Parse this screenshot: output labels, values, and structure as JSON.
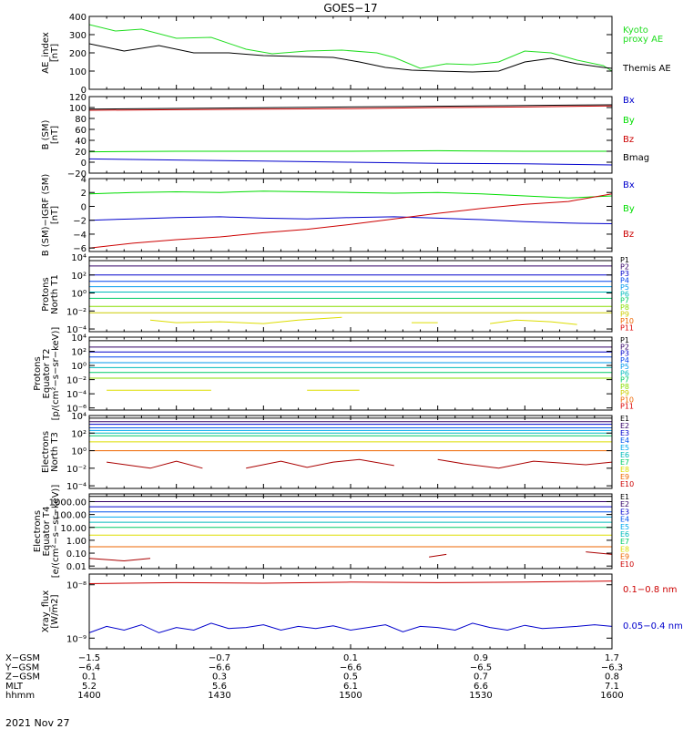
{
  "title": "GOES−17",
  "date_label": "2021 Nov 27",
  "colors": {
    "black": "#000000",
    "green": "#00dd00",
    "blue": "#0000cc",
    "red": "#cc0000",
    "ae_green": "#22dd22"
  },
  "footer": {
    "rows": [
      {
        "label": "X−GSM",
        "values": [
          "−1.5",
          "−0.7",
          "0.1",
          "0.9",
          "1.7"
        ]
      },
      {
        "label": "Y−GSM",
        "values": [
          "−6.4",
          "−6.6",
          "−6.6",
          "−6.5",
          "−6.3"
        ]
      },
      {
        "label": "Z−GSM",
        "values": [
          "0.1",
          "0.3",
          "0.5",
          "0.7",
          "0.8"
        ]
      },
      {
        "label": "MLT",
        "values": [
          "5.2",
          "5.6",
          "6.1",
          "6.6",
          "7.1"
        ]
      },
      {
        "label": "hhmm",
        "values": [
          "1400",
          "1430",
          "1500",
          "1530",
          "1600"
        ]
      }
    ]
  },
  "chart_data": [
    {
      "type": "line",
      "ylabel": [
        "AE_index",
        "[nT]"
      ],
      "ylim": [
        0,
        400
      ],
      "yticks": [
        "0",
        "100",
        "200",
        "300",
        "400"
      ],
      "x_minutes": [
        0,
        60
      ],
      "series": [
        {
          "name": "Kyoto proxy AE",
          "color": "#22dd22",
          "labels": [
            "Kyoto",
            "proxy AE"
          ],
          "x": [
            0,
            3,
            6,
            10,
            14,
            18,
            21,
            25,
            29,
            33,
            35,
            38,
            41,
            44,
            47,
            50,
            53,
            56,
            59,
            60
          ],
          "y": [
            355,
            320,
            330,
            280,
            285,
            220,
            195,
            210,
            215,
            200,
            175,
            115,
            140,
            135,
            150,
            210,
            200,
            160,
            130,
            100
          ]
        },
        {
          "name": "Themis AE",
          "color": "#000000",
          "labels": [
            "Themis AE"
          ],
          "x": [
            0,
            4,
            8,
            12,
            16,
            20,
            24,
            28,
            31,
            34,
            37,
            40,
            44,
            47,
            50,
            53,
            56,
            59,
            60
          ],
          "y": [
            250,
            210,
            240,
            200,
            200,
            185,
            180,
            175,
            150,
            120,
            105,
            100,
            95,
            100,
            150,
            170,
            140,
            120,
            115
          ]
        }
      ]
    },
    {
      "type": "line",
      "ylabel": [
        "B (SM)",
        "[nT]"
      ],
      "ylim": [
        -20,
        120
      ],
      "yticks": [
        "−20",
        "0",
        "20",
        "40",
        "60",
        "80",
        "100",
        "120"
      ],
      "x_minutes": [
        0,
        60
      ],
      "series": [
        {
          "name": "Bx",
          "color": "#0000cc",
          "x": [
            0,
            10,
            20,
            30,
            40,
            50,
            60
          ],
          "y": [
            6,
            4,
            2,
            0,
            -2,
            -3,
            -5
          ]
        },
        {
          "name": "By",
          "color": "#00dd00",
          "x": [
            0,
            10,
            20,
            30,
            40,
            50,
            60
          ],
          "y": [
            19,
            20,
            20,
            20,
            21,
            20,
            20
          ]
        },
        {
          "name": "Bz",
          "color": "#cc0000",
          "x": [
            0,
            10,
            20,
            30,
            40,
            50,
            60
          ],
          "y": [
            95,
            96,
            97,
            98,
            100,
            101,
            103
          ]
        },
        {
          "name": "Bmag",
          "color": "#000000",
          "x": [
            0,
            60
          ],
          "y": [
            97,
            105
          ]
        }
      ]
    },
    {
      "type": "line",
      "ylabel": [
        "B (SM)−IGRF (SM)",
        "[nT]"
      ],
      "ylim": [
        -6.5,
        4
      ],
      "yticks": [
        "−6",
        "−4",
        "−2",
        "0",
        "2",
        "4"
      ],
      "x_minutes": [
        0,
        60
      ],
      "series": [
        {
          "name": "Bx",
          "color": "#0000cc",
          "x": [
            0,
            5,
            10,
            15,
            20,
            25,
            30,
            35,
            40,
            45,
            50,
            55,
            60
          ],
          "y": [
            -2,
            -1.8,
            -1.6,
            -1.5,
            -1.7,
            -1.8,
            -1.6,
            -1.5,
            -1.7,
            -1.9,
            -2.2,
            -2.4,
            -2.5
          ]
        },
        {
          "name": "By",
          "color": "#00dd00",
          "x": [
            0,
            5,
            10,
            15,
            20,
            25,
            30,
            35,
            40,
            45,
            50,
            55,
            60
          ],
          "y": [
            1.8,
            2.0,
            2.1,
            2.0,
            2.2,
            2.1,
            2.0,
            1.9,
            2.0,
            1.8,
            1.5,
            1.2,
            1.5
          ]
        },
        {
          "name": "Bz",
          "color": "#cc0000",
          "x": [
            0,
            5,
            10,
            15,
            20,
            25,
            30,
            35,
            40,
            45,
            50,
            55,
            60
          ],
          "y": [
            -6,
            -5.3,
            -4.8,
            -4.4,
            -3.8,
            -3.3,
            -2.6,
            -1.8,
            -1.0,
            -0.3,
            0.3,
            0.7,
            1.8
          ]
        }
      ]
    },
    {
      "type": "line",
      "ylabel": [
        "Protons",
        "North T1"
      ],
      "scale": "log",
      "ylim": [
        -4.3,
        4
      ],
      "yticks": [
        {
          "e": -4,
          "t": "10⁻⁴"
        },
        {
          "e": -2,
          "t": "10⁻²"
        },
        {
          "e": 0,
          "t": "10⁰"
        },
        {
          "e": 2,
          "t": "10²"
        },
        {
          "e": 4,
          "t": "10⁴"
        }
      ],
      "x_minutes": [
        0,
        60
      ],
      "channels": [
        {
          "name": "P1",
          "color": "#000000",
          "log": 3.6
        },
        {
          "name": "P2",
          "color": "#330066",
          "log": 3.0
        },
        {
          "name": "P3",
          "color": "#0000cc",
          "log": 2.0
        },
        {
          "name": "P4",
          "color": "#0044ee",
          "log": 1.3
        },
        {
          "name": "P5",
          "color": "#0099ee",
          "log": 0.7
        },
        {
          "name": "P6",
          "color": "#00bbbb",
          "log": 0.1
        },
        {
          "name": "P7",
          "color": "#00cc66",
          "log": -0.6
        },
        {
          "name": "P8",
          "color": "#88dd00",
          "log": -1.5
        },
        {
          "name": "P9",
          "color": "#cccc00",
          "log": -2.2
        },
        {
          "name": "P10",
          "color": "#ee6600",
          "log": null
        },
        {
          "name": "P11",
          "color": "#dd0000",
          "log": null
        }
      ],
      "fragments": [
        {
          "color": "#dddd00",
          "x": [
            7,
            10,
            15,
            20,
            24,
            29
          ],
          "y": [
            -3.0,
            -3.3,
            -3.2,
            -3.4,
            -3.0,
            -2.7
          ]
        },
        {
          "color": "#dddd00",
          "x": [
            37,
            40
          ],
          "y": [
            -3.3,
            -3.3
          ]
        },
        {
          "color": "#dddd00",
          "x": [
            46,
            49,
            53,
            56
          ],
          "y": [
            -3.4,
            -3.0,
            -3.2,
            -3.5
          ]
        }
      ]
    },
    {
      "type": "line",
      "ylabel": [
        "Protons",
        "Equator T2",
        "[p/(cm²−s−sr−keV)]"
      ],
      "scale": "log",
      "ylim": [
        -6.3,
        4
      ],
      "yticks": [
        {
          "e": -6,
          "t": "10⁻⁶"
        },
        {
          "e": -4,
          "t": "10⁻⁴"
        },
        {
          "e": -2,
          "t": "10⁻²"
        },
        {
          "e": 0,
          "t": "10⁰"
        },
        {
          "e": 2,
          "t": "10²"
        },
        {
          "e": 4,
          "t": "10⁴"
        }
      ],
      "x_minutes": [
        0,
        60
      ],
      "channels": [
        {
          "name": "P1",
          "color": "#000000",
          "log": 3.5
        },
        {
          "name": "P2",
          "color": "#330066",
          "log": 2.6
        },
        {
          "name": "P3",
          "color": "#0000cc",
          "log": 1.9
        },
        {
          "name": "P4",
          "color": "#0044ee",
          "log": 1.2
        },
        {
          "name": "P5",
          "color": "#0099ee",
          "log": 0.4
        },
        {
          "name": "P6",
          "color": "#00bbbb",
          "log": -0.3
        },
        {
          "name": "P7",
          "color": "#00cc66",
          "log": -1.0
        },
        {
          "name": "P8",
          "color": "#88dd00",
          "log": -1.8
        },
        {
          "name": "P9",
          "color": "#cccc00",
          "log": null
        },
        {
          "name": "P10",
          "color": "#ee6600",
          "log": null
        },
        {
          "name": "P11",
          "color": "#dd0000",
          "log": null
        }
      ],
      "fragments": [
        {
          "color": "#dddd00",
          "x": [
            2,
            14
          ],
          "y": [
            -3.5,
            -3.5
          ]
        },
        {
          "color": "#dddd00",
          "x": [
            25,
            31
          ],
          "y": [
            -3.5,
            -3.5
          ]
        }
      ]
    },
    {
      "type": "line",
      "ylabel": [
        "Electrons",
        "North T3"
      ],
      "scale": "log",
      "ylim": [
        -4.3,
        4
      ],
      "yticks": [
        {
          "e": -4,
          "t": "10⁻⁴"
        },
        {
          "e": -2,
          "t": "10⁻²"
        },
        {
          "e": 0,
          "t": "10⁰"
        },
        {
          "e": 2,
          "t": "10²"
        },
        {
          "e": 4,
          "t": "10⁴"
        }
      ],
      "x_minutes": [
        0,
        60
      ],
      "channels": [
        {
          "name": "E1",
          "color": "#000000",
          "log": 3.7
        },
        {
          "name": "E2",
          "color": "#330066",
          "log": 3.3
        },
        {
          "name": "E3",
          "color": "#0000cc",
          "log": 3.0
        },
        {
          "name": "E4",
          "color": "#0055ee",
          "log": 2.6
        },
        {
          "name": "E5",
          "color": "#00aaee",
          "log": 2.3
        },
        {
          "name": "E6",
          "color": "#00bbbb",
          "log": 2.0
        },
        {
          "name": "E7",
          "color": "#00cc66",
          "log": 1.7
        },
        {
          "name": "E8",
          "color": "#dddd00",
          "log": 1.0
        },
        {
          "name": "E9",
          "color": "#ee6600",
          "log": 0.0
        },
        {
          "name": "E10",
          "color": "#cc0000",
          "log": null
        }
      ],
      "fragments": [
        {
          "color": "#aa0000",
          "x": [
            2,
            7,
            10,
            13
          ],
          "y": [
            -1.3,
            -2.0,
            -1.2,
            -2.0
          ]
        },
        {
          "color": "#aa0000",
          "x": [
            18,
            22,
            25,
            28,
            31,
            35
          ],
          "y": [
            -2.0,
            -1.2,
            -1.9,
            -1.3,
            -1.0,
            -1.7
          ]
        },
        {
          "color": "#aa0000",
          "x": [
            40,
            43,
            47,
            51,
            54,
            57,
            60
          ],
          "y": [
            -1.0,
            -1.5,
            -2.0,
            -1.2,
            -1.4,
            -1.6,
            -1.3
          ]
        }
      ]
    },
    {
      "type": "line",
      "ylabel": [
        "Electrons",
        "Equator T4",
        "[e/(cm²−s−sr−keV)]"
      ],
      "scale": "log",
      "ylim": [
        -2.2,
        3.6
      ],
      "yticks": [
        {
          "e": -2,
          "t": "0.01"
        },
        {
          "e": -1,
          "t": "0.10"
        },
        {
          "e": 0,
          "t": "1.00"
        },
        {
          "e": 1,
          "t": "10.00"
        },
        {
          "e": 2,
          "t": "100.00"
        },
        {
          "e": 3,
          "t": "1000.00"
        }
      ],
      "x_minutes": [
        0,
        60
      ],
      "channels": [
        {
          "name": "E1",
          "color": "#000000",
          "log": 3.4
        },
        {
          "name": "E2",
          "color": "#330066",
          "log": 3.0
        },
        {
          "name": "E3",
          "color": "#0000cc",
          "log": 2.6
        },
        {
          "name": "E4",
          "color": "#0055ee",
          "log": 2.2
        },
        {
          "name": "E5",
          "color": "#00aaee",
          "log": 1.8
        },
        {
          "name": "E6",
          "color": "#00bbbb",
          "log": 1.4
        },
        {
          "name": "E7",
          "color": "#00cc66",
          "log": 1.0
        },
        {
          "name": "E8",
          "color": "#dddd00",
          "log": 0.4
        },
        {
          "name": "E9",
          "color": "#ee6600",
          "log": -0.5
        },
        {
          "name": "E10",
          "color": "#cc0000",
          "log": null
        }
      ],
      "fragments": [
        {
          "color": "#aa0000",
          "x": [
            0,
            4,
            7
          ],
          "y": [
            -1.4,
            -1.6,
            -1.4
          ]
        },
        {
          "color": "#aa0000",
          "x": [
            39,
            41
          ],
          "y": [
            -1.3,
            -1.1
          ]
        },
        {
          "color": "#aa0000",
          "x": [
            57,
            60
          ],
          "y": [
            -0.9,
            -1.1
          ]
        }
      ]
    },
    {
      "type": "line",
      "ylabel": [
        "Xray_flux",
        "[W/m2]"
      ],
      "scale": "log",
      "ylim": [
        -9.2,
        -7.8
      ],
      "yticks": [
        {
          "e": -9,
          "t": "10⁻⁹"
        },
        {
          "e": -8,
          "t": "10⁻⁸"
        }
      ],
      "x_minutes": [
        0,
        60
      ],
      "series": [
        {
          "name": "0.1−0.8 nm",
          "color": "#cc0000",
          "labels": [
            "0.1−0.8 nm"
          ],
          "x": [
            0,
            10,
            20,
            30,
            40,
            50,
            60
          ],
          "y": [
            -7.98,
            -7.96,
            -7.97,
            -7.95,
            -7.96,
            -7.95,
            -7.93
          ]
        },
        {
          "name": "0.05−0.4 nm",
          "color": "#0000cc",
          "labels": [
            "0.05−0.4 nm"
          ],
          "x": [
            0,
            2,
            4,
            6,
            8,
            10,
            12,
            14,
            16,
            18,
            20,
            22,
            24,
            26,
            28,
            30,
            32,
            34,
            36,
            38,
            40,
            42,
            44,
            46,
            48,
            50,
            52,
            54,
            56,
            58,
            60
          ],
          "y": [
            -8.9,
            -8.78,
            -8.85,
            -8.75,
            -8.9,
            -8.8,
            -8.85,
            -8.72,
            -8.82,
            -8.8,
            -8.75,
            -8.85,
            -8.78,
            -8.82,
            -8.77,
            -8.85,
            -8.8,
            -8.75,
            -8.88,
            -8.78,
            -8.8,
            -8.85,
            -8.72,
            -8.8,
            -8.85,
            -8.76,
            -8.82,
            -8.8,
            -8.78,
            -8.75,
            -8.78
          ]
        }
      ]
    }
  ]
}
